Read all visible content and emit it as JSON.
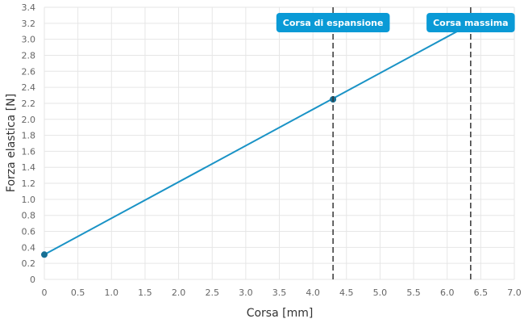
{
  "chart_data": {
    "type": "line",
    "xlabel": "Corsa [mm]",
    "ylabel": "Forza elastica [N]",
    "xlim": [
      0,
      7.0
    ],
    "ylim": [
      0,
      3.4
    ],
    "x_ticks": [
      "0",
      "0.5",
      "1.0",
      "1.5",
      "2.0",
      "2.5",
      "3.0",
      "3.5",
      "4.0",
      "4.5",
      "5.0",
      "5.5",
      "6.0",
      "6.5",
      "7.0"
    ],
    "y_ticks": [
      "0",
      "0.2",
      "0.4",
      "0.6",
      "0.8",
      "1.0",
      "1.2",
      "1.4",
      "1.6",
      "1.8",
      "2.0",
      "2.2",
      "2.4",
      "2.6",
      "2.8",
      "3.0",
      "3.2",
      "3.4"
    ],
    "grid": true,
    "series": [
      {
        "color": "#1a93c6",
        "points": [
          {
            "x": 0,
            "y": 0.31
          },
          {
            "x": 6.35,
            "y": 3.19
          }
        ],
        "markers": [
          {
            "x": 0,
            "y": 0.31
          },
          {
            "x": 4.3,
            "y": 2.25
          }
        ]
      }
    ],
    "annotations": [
      {
        "label": "Corsa di espansione",
        "x": 4.3
      },
      {
        "label": "Corsa massima",
        "x": 6.35
      }
    ],
    "annotation_color": "#0a9ad6",
    "marker_color": "#166f94",
    "vline_color": "#333333"
  }
}
